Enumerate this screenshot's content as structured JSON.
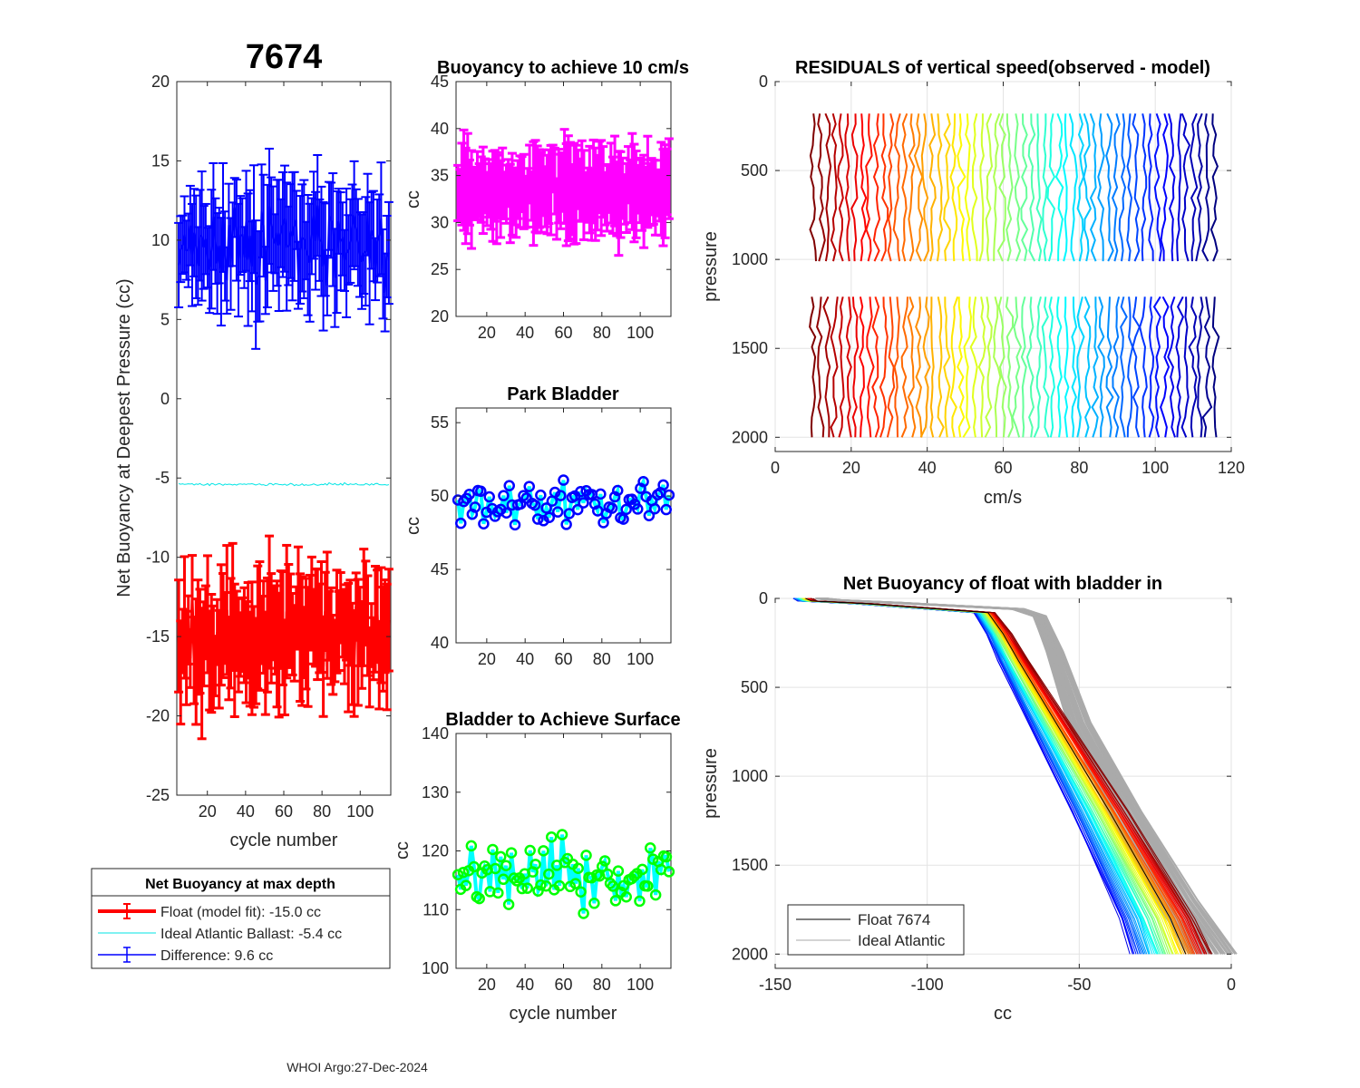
{
  "figure": {
    "float_id": "7674",
    "footer": "WHOI Argo:27-Dec-2024"
  },
  "chart_data": [
    {
      "id": "net_buoyancy",
      "type": "line",
      "title": "7674",
      "xlabel": "cycle number",
      "ylabel": "Net Buoyancy at Deepest Pressure (cc)",
      "xlim": [
        4,
        116
      ],
      "ylim": [
        -25,
        20
      ],
      "xticks": [
        20,
        40,
        60,
        80,
        100
      ],
      "yticks": [
        -25,
        -20,
        -15,
        -10,
        -5,
        0,
        5,
        10,
        15,
        20
      ],
      "x_range": [
        5,
        115
      ],
      "series": [
        {
          "name": "Float (model fit)",
          "color": "#ff0000",
          "mean": -15.0,
          "spread": 3.5,
          "errbar": 3.0
        },
        {
          "name": "Ideal Atlantic Ballast",
          "color": "#00e5e5",
          "mean": -5.4,
          "spread": 0.12
        },
        {
          "name": "Difference",
          "color": "#0000ff",
          "mean": 9.6,
          "spread": 3.5,
          "errbar": 3.0
        }
      ],
      "legend": {
        "title": "Net Buoyancy at max depth",
        "entries": [
          "Float (model fit): -15.0 cc",
          "Ideal Atlantic Ballast:  -5.4 cc",
          "Difference:   9.6 cc"
        ]
      }
    },
    {
      "id": "buoyancy_10cms",
      "type": "line",
      "title": "Buoyancy to achieve 10 cm/s",
      "ylabel": "cc",
      "xlim": [
        4,
        116
      ],
      "ylim": [
        20,
        45
      ],
      "xticks": [
        20,
        40,
        60,
        80,
        100
      ],
      "yticks": [
        20,
        25,
        30,
        35,
        40,
        45
      ],
      "x_range": [
        5,
        115
      ],
      "series": [
        {
          "name": "buoyancy",
          "color": "#ff00ff",
          "mean": 33.5,
          "spread": 2.8,
          "errbar": 4.0
        }
      ]
    },
    {
      "id": "park_bladder",
      "type": "line",
      "title": "Park Bladder",
      "ylabel": "cc",
      "xlim": [
        4,
        116
      ],
      "ylim": [
        40,
        56
      ],
      "xticks": [
        20,
        40,
        60,
        80,
        100
      ],
      "yticks": [
        40,
        45,
        50,
        55
      ],
      "x_range": [
        5,
        115
      ],
      "series": [
        {
          "name": "park bladder",
          "line_color": "#00ffff",
          "marker_color": "#0000ff",
          "mean": 49.5,
          "spread": 2.2
        }
      ]
    },
    {
      "id": "bladder_surface",
      "type": "line",
      "title": "Bladder to Achieve Surface",
      "xlabel": "cycle number",
      "ylabel": "cc",
      "xlim": [
        4,
        116
      ],
      "ylim": [
        100,
        140
      ],
      "xticks": [
        20,
        40,
        60,
        80,
        100
      ],
      "yticks": [
        100,
        110,
        120,
        130,
        140
      ],
      "x_range": [
        5,
        115
      ],
      "series": [
        {
          "name": "surface bladder",
          "line_color": "#00ffff",
          "marker_color": "#00ff00",
          "mean": 116,
          "spread": 8
        }
      ]
    },
    {
      "id": "residuals",
      "type": "line",
      "title": "RESIDUALS of vertical speed(observed - model)",
      "xlabel": "cm/s",
      "ylabel": "pressure",
      "xlim": [
        0,
        120
      ],
      "ylim": [
        2080,
        0
      ],
      "xticks": [
        0,
        20,
        40,
        60,
        80,
        100,
        120
      ],
      "yticks": [
        0,
        500,
        1000,
        1500,
        2000
      ],
      "profile_count": 58,
      "offset_start": 10,
      "offset_step": 1.85,
      "depth_segments": [
        [
          180,
          1010
        ],
        [
          1210,
          2000
        ]
      ],
      "colormap": "jet"
    },
    {
      "id": "net_buoyancy_profile",
      "type": "line",
      "title": "Net Buoyancy of float with bladder in",
      "xlabel": "cc",
      "ylabel": "pressure",
      "xlim": [
        -150,
        0
      ],
      "ylim": [
        2080,
        0
      ],
      "xticks": [
        -150,
        -100,
        -50,
        0
      ],
      "yticks": [
        0,
        500,
        1000,
        1500,
        2000
      ],
      "profile_count": 60,
      "float_curve": [
        [
          -140,
          0
        ],
        [
          -138,
          15
        ],
        [
          -120,
          30
        ],
        [
          -80,
          80
        ],
        [
          -75,
          200
        ],
        [
          -70,
          350
        ],
        [
          -40,
          1200
        ],
        [
          -20,
          1800
        ],
        [
          -15,
          2000
        ]
      ],
      "ideal_curve": [
        [
          -135,
          0
        ],
        [
          -130,
          10
        ],
        [
          -110,
          25
        ],
        [
          -70,
          60
        ],
        [
          -63,
          100
        ],
        [
          -58,
          300
        ],
        [
          -50,
          700
        ],
        [
          -35,
          1200
        ],
        [
          -18,
          1700
        ],
        [
          -6,
          2000
        ]
      ],
      "legend": {
        "entries": [
          "Float 7674",
          "Ideal Atlantic"
        ],
        "colors": [
          "#000000",
          "#aaaaaa"
        ]
      }
    }
  ]
}
